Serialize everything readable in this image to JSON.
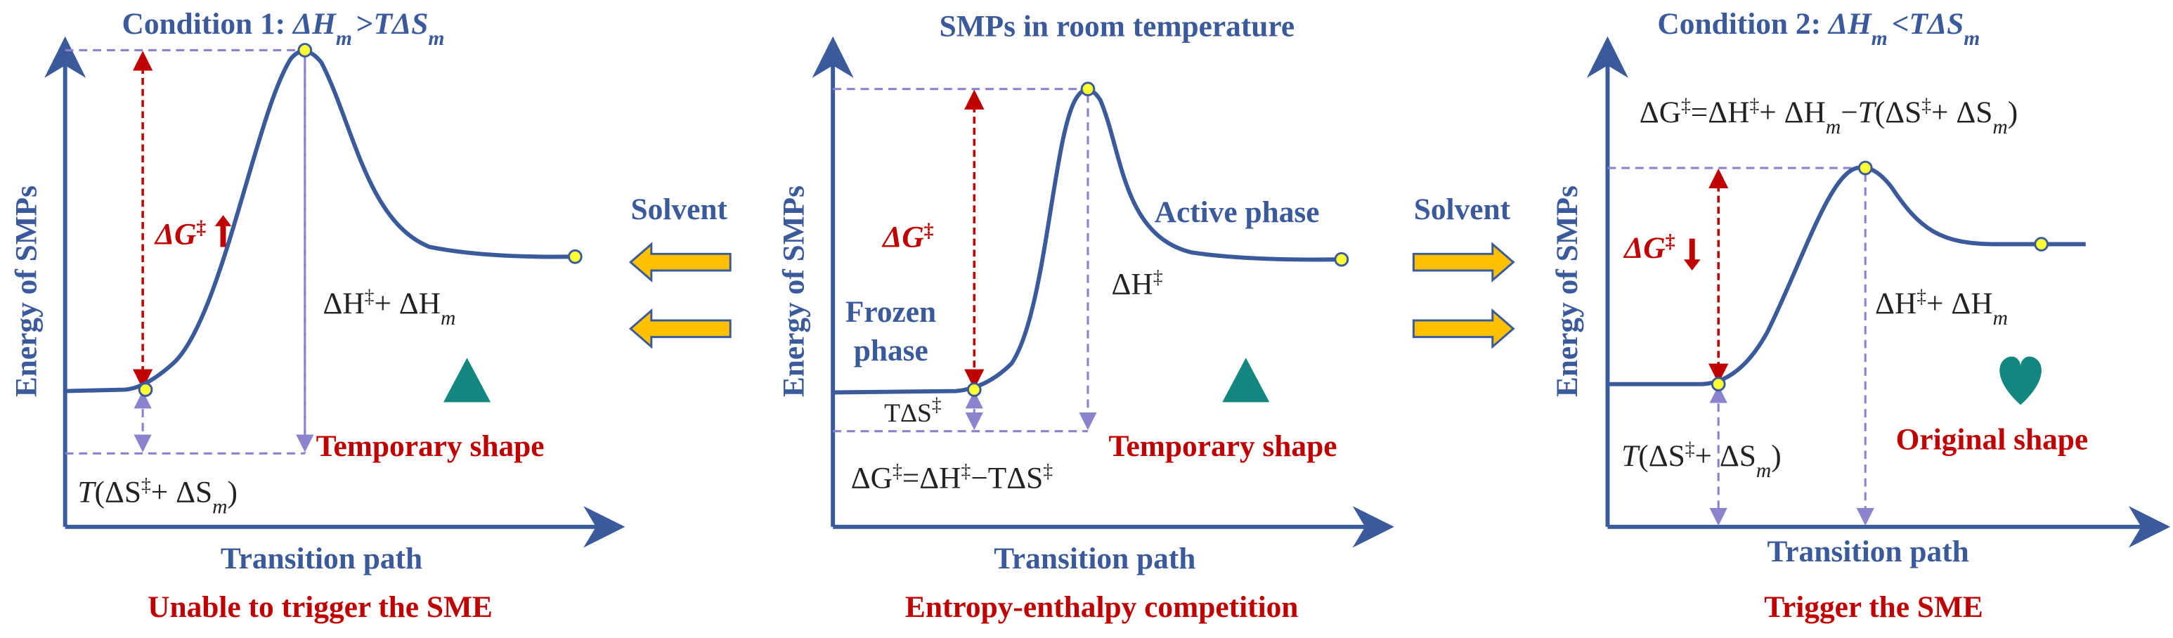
{
  "left": {
    "title": [
      "Condition 1: ",
      "ΔH",
      "m",
      ">",
      "TΔS",
      "m"
    ],
    "y_label": "Energy of SMPs",
    "x_label": "Transition path",
    "delta_g": [
      "ΔG",
      "‡"
    ],
    "enthalpy": [
      "ΔH",
      "‡",
      "+ ΔH",
      "m"
    ],
    "entropy": [
      "T",
      "(ΔS",
      "‡",
      "+ ΔS",
      "m",
      ")"
    ],
    "shape": "Temporary shape",
    "caption": "Unable to trigger the SME"
  },
  "middle": {
    "title": "SMPs in room temperature",
    "y_label": "Energy of SMPs",
    "x_label": "Transition path",
    "active": "Active phase",
    "frozen": [
      "Frozen",
      "phase"
    ],
    "delta_g": [
      "ΔG",
      "‡"
    ],
    "enthalpy": [
      "ΔH",
      "‡"
    ],
    "entropy": [
      "TΔS",
      "‡"
    ],
    "equation": [
      "ΔG",
      "‡",
      "=ΔH",
      "‡",
      "−TΔS",
      "‡"
    ],
    "shape": "Temporary shape",
    "caption": "Entropy-enthalpy competition"
  },
  "right": {
    "title": [
      "Condition 2: ",
      "ΔH",
      "m",
      "<",
      "TΔS",
      "m"
    ],
    "y_label": "Energy of SMPs",
    "x_label": "Transition path",
    "equation": [
      "ΔG",
      "‡",
      "=ΔH",
      "‡",
      "+ ΔH",
      "m",
      "−",
      "T",
      "(ΔS",
      "‡",
      "+ ΔS",
      "m",
      ")"
    ],
    "delta_g": [
      "ΔG",
      "‡"
    ],
    "enthalpy": [
      "ΔH",
      "‡",
      "+ ΔH",
      "m"
    ],
    "entropy": [
      "T",
      "(ΔS",
      "‡",
      "+ ΔS",
      "m",
      ")"
    ],
    "shape": "Original shape",
    "caption": "Trigger the SME"
  },
  "solvent_labels": [
    "Solvent",
    "Solvent"
  ]
}
